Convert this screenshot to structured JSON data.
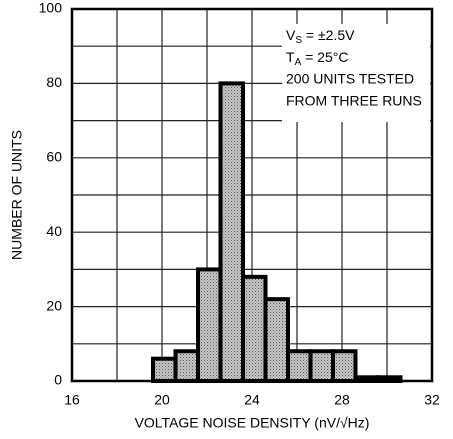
{
  "chart_data": {
    "type": "histogram",
    "xlabel": "VOLTAGE NOISE DENSITY (nV/√Hz)",
    "ylabel": "NUMBER OF UNITS",
    "bins": [
      19.6,
      20.6,
      21.6,
      22.6,
      23.6,
      24.6,
      25.6,
      26.6,
      27.6,
      28.6,
      29.6,
      30.6
    ],
    "counts": [
      6,
      8,
      30,
      80,
      28,
      22,
      8,
      8,
      8,
      1,
      1
    ],
    "color": "#b8b8b8",
    "xlim": [
      16,
      32
    ],
    "ylim": [
      0,
      100
    ],
    "xticks": [
      16,
      20,
      24,
      28,
      32
    ],
    "yticks": [
      0,
      20,
      40,
      60,
      80,
      100
    ],
    "xminor": [
      18,
      22,
      26,
      30
    ],
    "yminor": [
      10,
      30,
      50,
      70,
      90
    ],
    "grid": true,
    "conditions": [
      {
        "symbol": "V",
        "sub": "S",
        "rest": " = ±2.5V"
      },
      {
        "symbol": "T",
        "sub": "A",
        "rest": " = 25°C"
      }
    ],
    "notes": [
      "200 UNITS TESTED",
      "FROM THREE RUNS"
    ]
  }
}
